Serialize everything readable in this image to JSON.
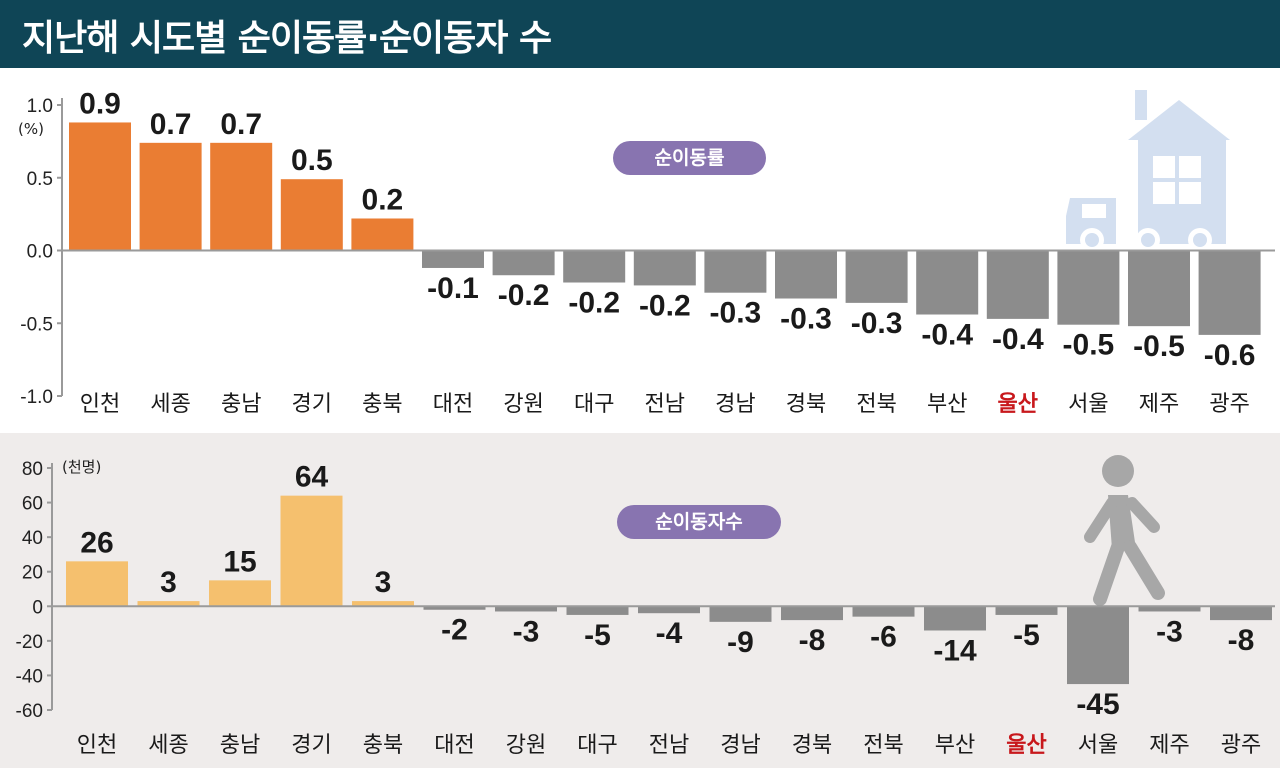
{
  "header": {
    "title": "지난해 시도별 순이동률·순이동자 수"
  },
  "colors": {
    "header_bg": "#0f4556",
    "bar_rate_positive": "#ea7d33",
    "bar_count_positive": "#f5c06e",
    "bar_negative": "#8c8c8c",
    "highlight_label": "#c8181c",
    "pill_bg": "#8874b0",
    "icon_house": "#d3dff0",
    "icon_person": "#a7a7a7"
  },
  "icons": [
    "house-truck-icon",
    "walking-person-icon"
  ],
  "chart_data": [
    {
      "type": "bar",
      "title": "순이동률",
      "unit": "(%)",
      "categories": [
        "인천",
        "세종",
        "충남",
        "경기",
        "충북",
        "대전",
        "강원",
        "대구",
        "전남",
        "경남",
        "경북",
        "전북",
        "부산",
        "울산",
        "서울",
        "제주",
        "광주"
      ],
      "highlight_category": "울산",
      "values": [
        0.9,
        0.7,
        0.7,
        0.5,
        0.2,
        -0.1,
        -0.2,
        -0.2,
        -0.2,
        -0.3,
        -0.3,
        -0.3,
        -0.4,
        -0.4,
        -0.5,
        -0.5,
        -0.6
      ],
      "labels": [
        "0.9",
        "0.7",
        "0.7",
        "0.5",
        "0.2",
        "-0.1",
        "-0.2",
        "-0.2",
        "-0.2",
        "-0.3",
        "-0.3",
        "-0.3",
        "-0.4",
        "-0.4",
        "-0.5",
        "-0.5",
        "-0.6"
      ],
      "bar_values": [
        0.88,
        0.74,
        0.74,
        0.49,
        0.22,
        -0.12,
        -0.17,
        -0.22,
        -0.24,
        -0.29,
        -0.33,
        -0.36,
        -0.44,
        -0.47,
        -0.51,
        -0.52,
        -0.58
      ],
      "ylim": [
        -1.0,
        1.0
      ],
      "yticks": [
        1.0,
        0.5,
        0.0,
        -0.5,
        -1.0
      ],
      "ytick_labels": [
        "1.0",
        "0.5",
        "0.0",
        "-0.5",
        "-1.0"
      ],
      "grid": false
    },
    {
      "type": "bar",
      "title": "순이동자수",
      "unit": "(천명)",
      "categories": [
        "인천",
        "세종",
        "충남",
        "경기",
        "충북",
        "대전",
        "강원",
        "대구",
        "전남",
        "경남",
        "경북",
        "전북",
        "부산",
        "울산",
        "서울",
        "제주",
        "광주"
      ],
      "highlight_category": "울산",
      "values": [
        26,
        3,
        15,
        64,
        3,
        -2,
        -3,
        -5,
        -4,
        -9,
        -8,
        -6,
        -14,
        -5,
        -45,
        -3,
        -8
      ],
      "labels": [
        "26",
        "3",
        "15",
        "64",
        "3",
        "-2",
        "-3",
        "-5",
        "-4",
        "-9",
        "-8",
        "-6",
        "-14",
        "-5",
        "-45",
        "-3",
        "-8"
      ],
      "ylim": [
        -60,
        80
      ],
      "yticks": [
        80,
        60,
        40,
        20,
        0,
        -20,
        -40,
        -60
      ],
      "ytick_labels": [
        "80",
        "60",
        "40",
        "20",
        "0",
        "-20",
        "-40",
        "-60"
      ],
      "grid": false
    }
  ]
}
